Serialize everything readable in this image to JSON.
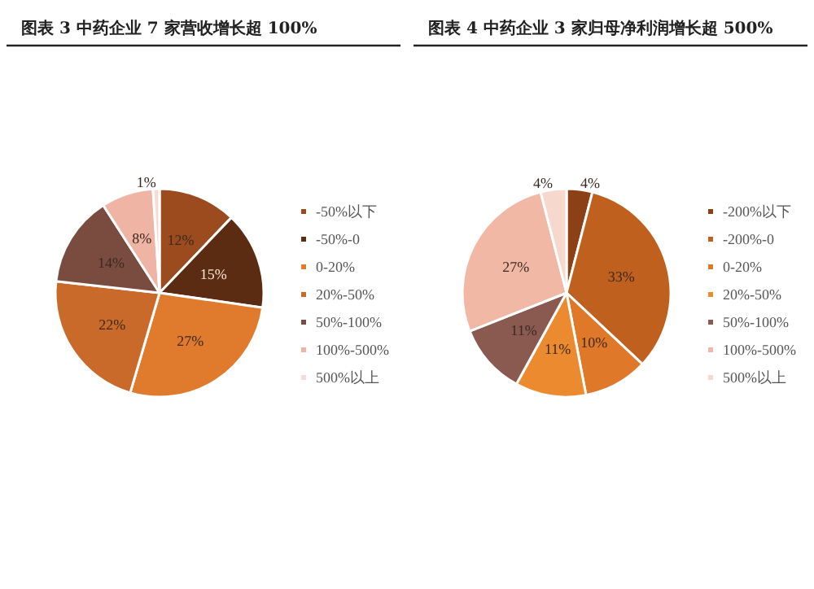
{
  "chart_data": [
    {
      "type": "pie",
      "title": "图表 3 中药企业 7 家营收增长超 100%",
      "categories": [
        "-50%以下",
        "-50%-0",
        "0-20%",
        "20%-50%",
        "50%-100%",
        "100%-500%",
        "500%以上"
      ],
      "values": [
        12,
        15,
        27,
        22,
        14,
        8,
        1
      ],
      "value_labels": [
        "12%",
        "15%",
        "27%",
        "22%",
        "14%",
        "8%",
        "1%"
      ],
      "colors": [
        "#9b4b1e",
        "#5c2c12",
        "#e07b2e",
        "#c9692a",
        "#7a4c40",
        "#f0b4a4",
        "#f6dcd4"
      ],
      "legend": "right"
    },
    {
      "type": "pie",
      "title": "图表 4 中药企业 3 家归母净利润增长超 500%",
      "categories": [
        "-200%以下",
        "-200%-0",
        "0-20%",
        "20%-50%",
        "50%-100%",
        "100%-500%",
        "500%以上"
      ],
      "values": [
        4,
        33,
        10,
        11,
        11,
        27,
        4
      ],
      "value_labels": [
        "4%",
        "33%",
        "10%",
        "11%",
        "11%",
        "27%",
        "4%"
      ],
      "colors": [
        "#8b4016",
        "#c0601e",
        "#e0782a",
        "#ec8a30",
        "#8a5a50",
        "#f2b8a6",
        "#f6d8cc"
      ],
      "legend": "right"
    }
  ]
}
